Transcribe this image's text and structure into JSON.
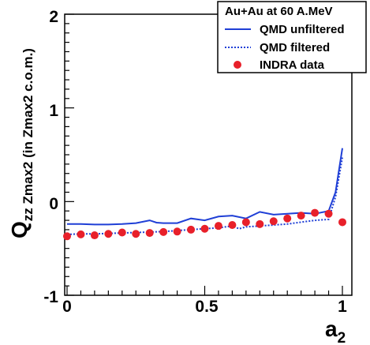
{
  "chart_data": {
    "type": "line",
    "title": "",
    "xlabel_main": "a",
    "xlabel_sub": "2",
    "ylabel_main": "Q",
    "ylabel_sub": "zz Zmax2 (in Zmax2 c.o.m.)",
    "xlim": [
      0,
      1
    ],
    "ylim": [
      -1,
      2
    ],
    "x_ticks": [
      "0",
      "0.5",
      "1"
    ],
    "y_ticks": [
      "-1",
      "0",
      "1",
      "2"
    ],
    "grid": false,
    "legend_position": "top-right",
    "legend_header": "Au+Au at 60 A.MeV",
    "series": [
      {
        "name": "QMD unfiltered",
        "style": "solid",
        "color": "#1f3fd6",
        "x": [
          0.0,
          0.05,
          0.1,
          0.15,
          0.2,
          0.25,
          0.3,
          0.325,
          0.35,
          0.4,
          0.45,
          0.5,
          0.55,
          0.6,
          0.65,
          0.7,
          0.75,
          0.8,
          0.85,
          0.9,
          0.95,
          0.975,
          1.0
        ],
        "y": [
          -0.24,
          -0.24,
          -0.245,
          -0.245,
          -0.24,
          -0.23,
          -0.2,
          -0.225,
          -0.23,
          -0.23,
          -0.18,
          -0.2,
          -0.16,
          -0.15,
          -0.18,
          -0.11,
          -0.14,
          -0.13,
          -0.12,
          -0.13,
          -0.1,
          0.1,
          0.57
        ]
      },
      {
        "name": "QMD filtered",
        "style": "dotted",
        "color": "#1f3fd6",
        "x": [
          0.0,
          0.05,
          0.1,
          0.15,
          0.2,
          0.25,
          0.3,
          0.35,
          0.4,
          0.45,
          0.5,
          0.55,
          0.6,
          0.625,
          0.65,
          0.7,
          0.75,
          0.8,
          0.85,
          0.9,
          0.95,
          0.975,
          1.0
        ],
        "y": [
          -0.35,
          -0.345,
          -0.345,
          -0.34,
          -0.335,
          -0.33,
          -0.325,
          -0.32,
          -0.31,
          -0.3,
          -0.29,
          -0.28,
          -0.26,
          -0.29,
          -0.27,
          -0.26,
          -0.25,
          -0.24,
          -0.22,
          -0.2,
          -0.19,
          0.05,
          0.47
        ]
      },
      {
        "name": "INDRA data",
        "style": "markers",
        "color": "#e8202a",
        "x": [
          0.0,
          0.05,
          0.1,
          0.15,
          0.2,
          0.25,
          0.3,
          0.35,
          0.4,
          0.45,
          0.5,
          0.55,
          0.6,
          0.65,
          0.7,
          0.75,
          0.8,
          0.85,
          0.9,
          0.95,
          1.0
        ],
        "y": [
          -0.37,
          -0.35,
          -0.36,
          -0.345,
          -0.33,
          -0.345,
          -0.335,
          -0.325,
          -0.32,
          -0.3,
          -0.29,
          -0.26,
          -0.25,
          -0.22,
          -0.24,
          -0.21,
          -0.18,
          -0.15,
          -0.12,
          -0.13,
          -0.22
        ]
      }
    ]
  }
}
